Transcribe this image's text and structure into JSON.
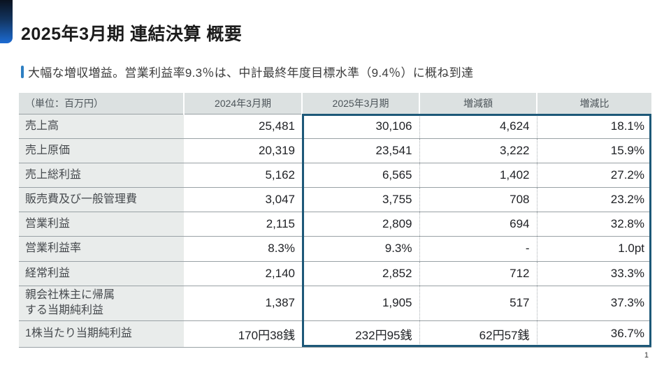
{
  "slide": {
    "title": "2025年3月期 連結決算 概要",
    "subtitle": "大幅な増収増益。営業利益率9.3％は、中計最終年度目標水準（9.4％）に概ね到達",
    "page_number": "1"
  },
  "colors": {
    "accent_gradient_top": "#0a1220",
    "accent_gradient_bottom": "#1c6bd3",
    "subtitle_bar_blue": "#2e7fc2",
    "highlight_border_blue": "#1d5878",
    "header_bg": "#dce1e1",
    "label_column_bg": "#e9eceb",
    "row_line_gray": "#99a1a5"
  },
  "table": {
    "headers": [
      "（単位：百万円）",
      "2024年3月期",
      "2025年3月期",
      "増減額",
      "増減比"
    ],
    "rows": [
      {
        "label": "売上高",
        "fy2024": "25,481",
        "fy2025": "30,106",
        "change": "4,624",
        "ratio": "18.1%"
      },
      {
        "label": "売上原価",
        "fy2024": "20,319",
        "fy2025": "23,541",
        "change": "3,222",
        "ratio": "15.9%"
      },
      {
        "label": "売上総利益",
        "fy2024": "5,162",
        "fy2025": "6,565",
        "change": "1,402",
        "ratio": "27.2%"
      },
      {
        "label": "販売費及び一般管理費",
        "fy2024": "3,047",
        "fy2025": "3,755",
        "change": "708",
        "ratio": "23.2%"
      },
      {
        "label": "営業利益",
        "fy2024": "2,115",
        "fy2025": "2,809",
        "change": "694",
        "ratio": "32.8%"
      },
      {
        "label": "営業利益率",
        "fy2024": "8.3%",
        "fy2025": "9.3%",
        "change": "-",
        "ratio": "1.0pt"
      },
      {
        "label": "経常利益",
        "fy2024": "2,140",
        "fy2025": "2,852",
        "change": "712",
        "ratio": "33.3%"
      },
      {
        "label": "親会社株主に帰属\nする当期純利益",
        "fy2024": "1,387",
        "fy2025": "1,905",
        "change": "517",
        "ratio": "37.3%"
      },
      {
        "label": "1株当たり当期純利益",
        "fy2024": "170円38銭",
        "fy2025": "232円95銭",
        "change": "62円57銭",
        "ratio": "36.7%"
      }
    ]
  }
}
